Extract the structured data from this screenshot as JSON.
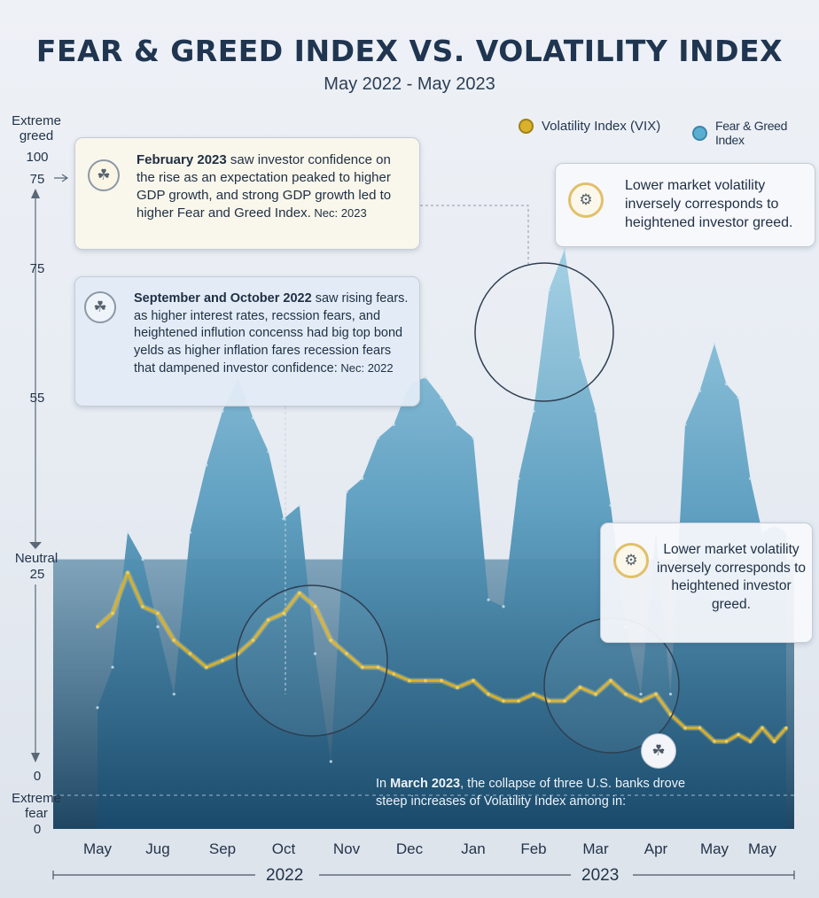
{
  "title": "FEAR & GREED INDEX VS. VOLATILITY INDEX",
  "subtitle": "May 2022 - May 2023",
  "legend": {
    "vix_label": "Volatility Index (VIX)",
    "fg_label": "Fear & Greed Index"
  },
  "colors": {
    "vix": "#d9b12a",
    "fg_light": "#8fc6de",
    "fg_dark": "#1b4f70",
    "background": "#e9edf3"
  },
  "y_axis": {
    "top_label_line1": "Extreme",
    "top_label_line2": "greed",
    "tick_100": "100",
    "tick_75_upper": "75",
    "tick_75": "75",
    "tick_55": "55",
    "neutral_label": "Neutral",
    "tick_25": "25",
    "tick_0_upper": "0",
    "bottom_label_line1": "Extreme",
    "bottom_label_line2": "fear",
    "tick_0": "0"
  },
  "x_axis": {
    "ticks": [
      "May",
      "Jug",
      "Sep",
      "Oct",
      "Nov",
      "Dec",
      "Jan",
      "Feb",
      "Mar",
      "Apr",
      "May",
      "May"
    ],
    "year_2022": "2022",
    "year_2023": "2023"
  },
  "callouts": {
    "feb": {
      "lead": "February 2023",
      "text": " saw investor confidence on the rise as an expectation peaked to higher GDP growth, and strong GDP growth led to higher Fear and Greed Index.",
      "source": " Nec: 2023"
    },
    "sep": {
      "lead": "September and October 2022",
      "text": " saw rising fears. as higher interest rates, recssion fears, and heightened inflution concenss had big top bond yelds as higher inflation fares recession fears that dampened investor confidence:",
      "source": " Nec: 2022"
    },
    "top_right": "Lower market volatility inversely corresponds to heightened investor greed.",
    "mid_right": "Lower market volatility inversely corresponds to heightened investor greed.",
    "march_pre": "In ",
    "march_lead": "March 2023",
    "march_text": ", the collapse of three U.S. banks drove steep increases of Volatility Index among in:"
  },
  "icons": {
    "feb": "piggy-bank-icon",
    "sep": "piggy-bank-icon",
    "top_right": "gear-icon",
    "mid_right": "gear-icon",
    "march": "piggy-bank-icon"
  },
  "chart_data": {
    "type": "area",
    "x": [
      0,
      0.25,
      0.5,
      0.75,
      1,
      1.25,
      1.5,
      1.75,
      2,
      2.25,
      2.5,
      2.75,
      3,
      3.25,
      3.5,
      3.75,
      4,
      4.25,
      4.5,
      4.75,
      5,
      5.25,
      5.5,
      5.75,
      6,
      6.25,
      6.5,
      6.75,
      7,
      7.25,
      7.5,
      7.75,
      8,
      8.25,
      8.5,
      8.75,
      9,
      9.25,
      9.5,
      9.75,
      10,
      10.25,
      10.5,
      10.75,
      11,
      11.25,
      11.5
    ],
    "x_ticks": [
      "May",
      "Jug",
      "Sep",
      "Oct",
      "Nov",
      "Dec",
      "Jan",
      "Feb",
      "Mar",
      "Apr",
      "May",
      "May"
    ],
    "ylim": [
      0,
      100
    ],
    "series": [
      {
        "name": "Fear & Greed Index",
        "kind": "area",
        "values": [
          18,
          24,
          44,
          40,
          30,
          20,
          44,
          54,
          62,
          67,
          61,
          56,
          46,
          48,
          26,
          10,
          50,
          52,
          58,
          60,
          66,
          67,
          64,
          60,
          58,
          34,
          33,
          52,
          62,
          80,
          86,
          70,
          62,
          48,
          30,
          20,
          44,
          20,
          60,
          65,
          72,
          66,
          64,
          52,
          44,
          45,
          44
        ]
      },
      {
        "name": "Volatility Index (VIX)",
        "kind": "line",
        "values": [
          30,
          32,
          38,
          33,
          32,
          28,
          26,
          24,
          25,
          26,
          28,
          31,
          32,
          35,
          33,
          28,
          26,
          24,
          24,
          23,
          22,
          22,
          22,
          21,
          22,
          20,
          19,
          19,
          20,
          19,
          19,
          21,
          20,
          22,
          20,
          19,
          20,
          17,
          15,
          15,
          13,
          13,
          14,
          13,
          15,
          13,
          15
        ]
      }
    ]
  }
}
